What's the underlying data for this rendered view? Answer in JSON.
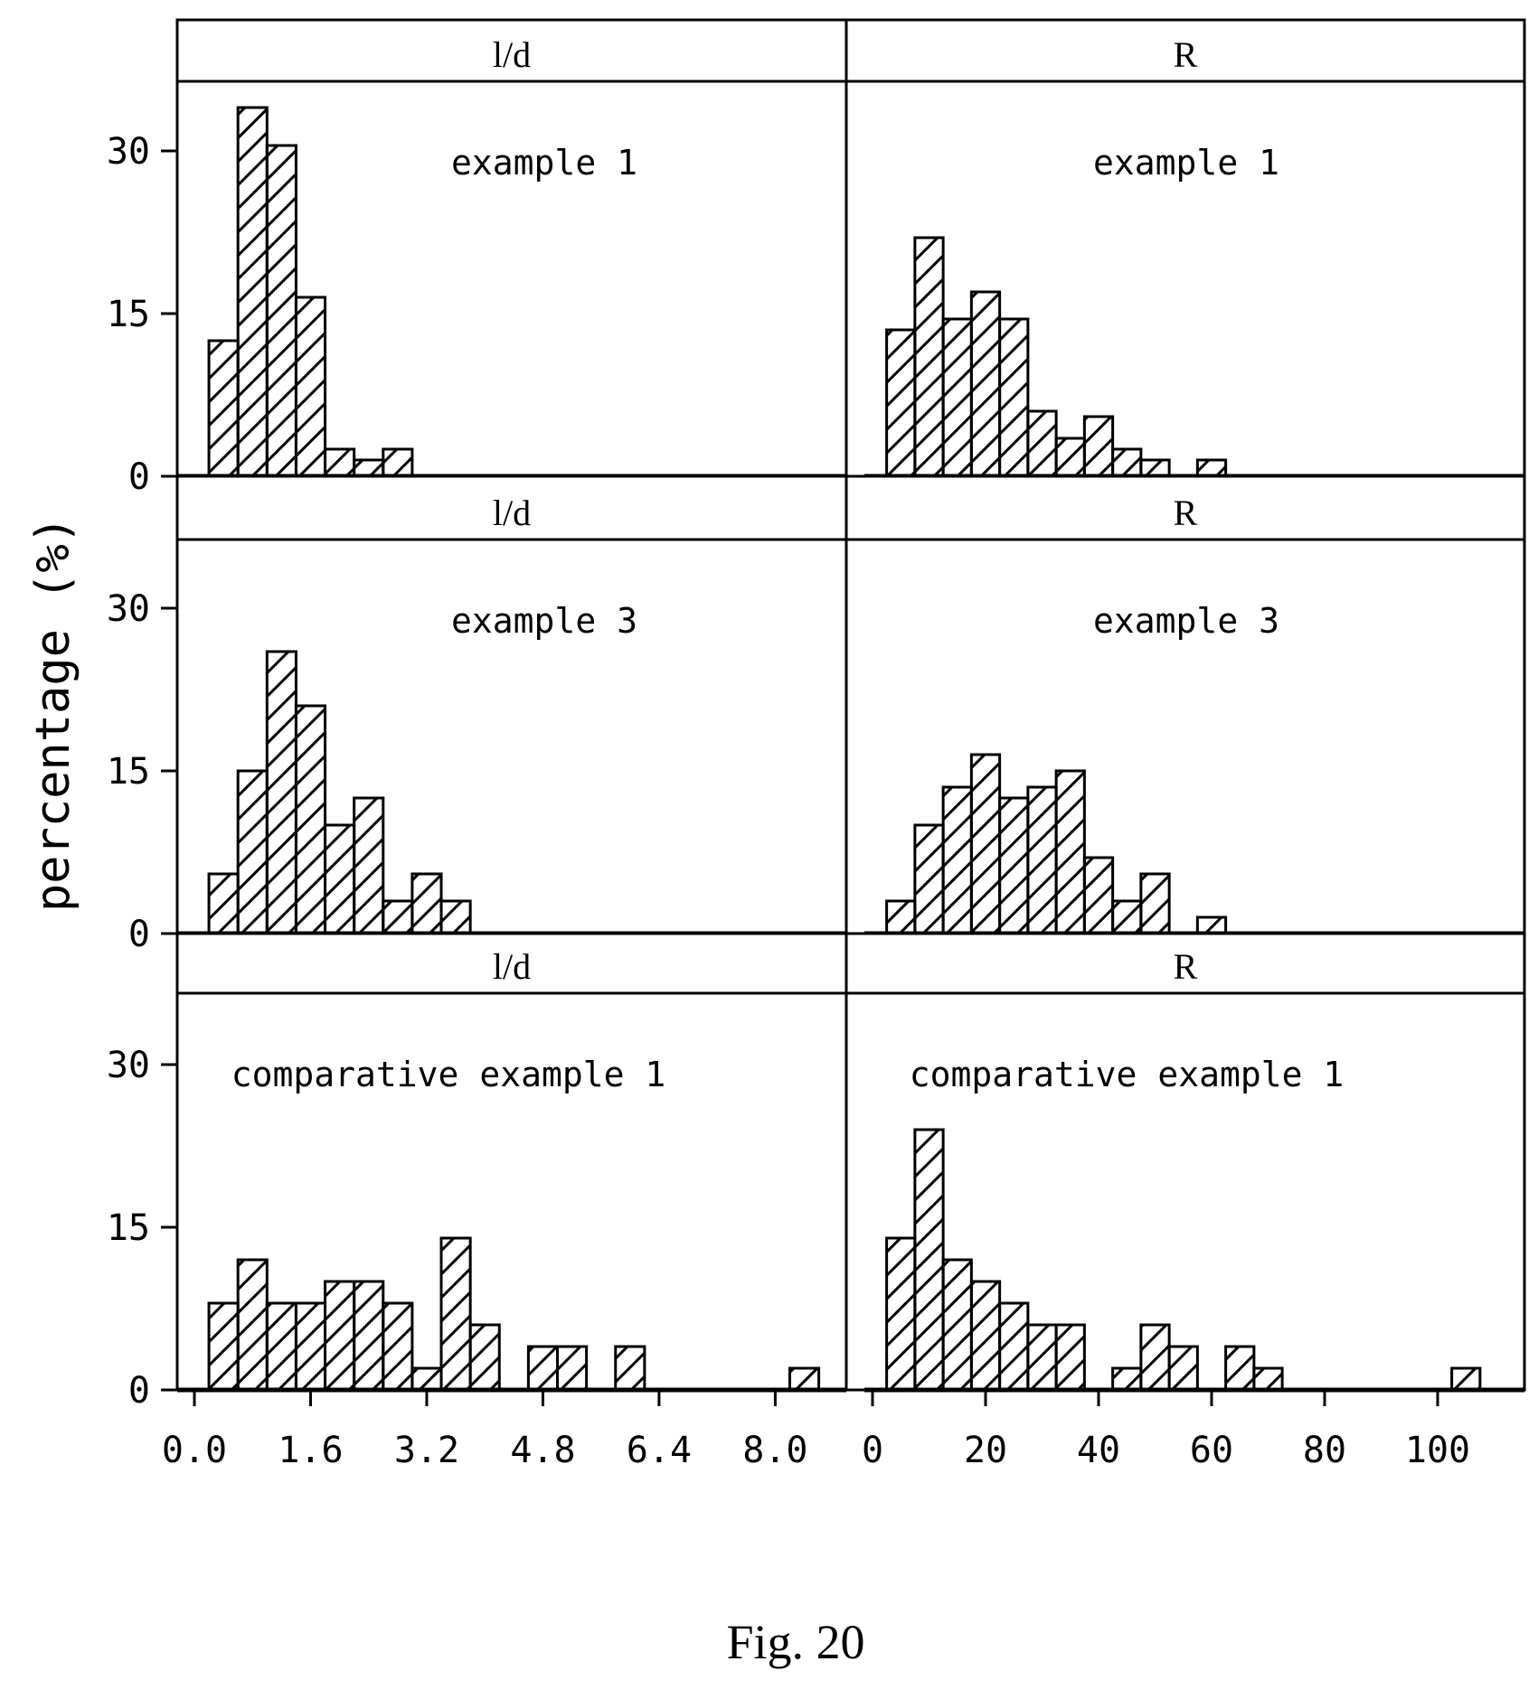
{
  "figure_caption": "Fig. 20",
  "y_axis_label": "percentage (%)",
  "y_ticks": [
    "0",
    "15",
    "30"
  ],
  "x_axes": {
    "ld": [
      "0.0",
      "1.6",
      "3.2",
      "4.8",
      "6.4",
      "8.0"
    ],
    "r": [
      "0",
      "20",
      "40",
      "60",
      "80",
      "100"
    ]
  },
  "chart_data": [
    {
      "type": "bar",
      "strip": "l/d",
      "annotation": "example 1",
      "x_range": [
        0,
        8.8
      ],
      "ylim": [
        0,
        35
      ],
      "bin_width": 0.4,
      "bins": [
        0.4,
        0.8,
        1.2,
        1.6,
        2.0,
        2.4,
        2.8
      ],
      "values": [
        12.5,
        34,
        30.5,
        16.5,
        2.5,
        1.5,
        2.5
      ]
    },
    {
      "type": "bar",
      "strip": "R",
      "annotation": "example 1",
      "x_range": [
        0,
        115
      ],
      "ylim": [
        0,
        35
      ],
      "bin_width": 5,
      "bins": [
        5,
        10,
        15,
        20,
        25,
        30,
        35,
        40,
        45,
        50,
        60
      ],
      "values": [
        13.5,
        22,
        14.5,
        17,
        14.5,
        6,
        3.5,
        5.5,
        2.5,
        1.5,
        1.5
      ]
    },
    {
      "type": "bar",
      "strip": "l/d",
      "annotation": "example 3",
      "x_range": [
        0,
        8.8
      ],
      "ylim": [
        0,
        35
      ],
      "bin_width": 0.4,
      "bins": [
        0.4,
        0.8,
        1.2,
        1.6,
        2.0,
        2.4,
        2.8,
        3.2,
        3.6
      ],
      "values": [
        5.5,
        15,
        26,
        21,
        10,
        12.5,
        3,
        5.5,
        3
      ]
    },
    {
      "type": "bar",
      "strip": "R",
      "annotation": "example 3",
      "x_range": [
        0,
        115
      ],
      "ylim": [
        0,
        35
      ],
      "bin_width": 5,
      "bins": [
        5,
        10,
        15,
        20,
        25,
        30,
        35,
        40,
        45,
        50,
        60
      ],
      "values": [
        3,
        10,
        13.5,
        16.5,
        12.5,
        13.5,
        15,
        7,
        3,
        5.5,
        1.5
      ]
    },
    {
      "type": "bar",
      "strip": "l/d",
      "annotation": "comparative example 1",
      "x_range": [
        0,
        8.8
      ],
      "ylim": [
        0,
        35
      ],
      "bin_width": 0.4,
      "bins": [
        0.4,
        0.8,
        1.2,
        1.6,
        2.0,
        2.4,
        2.8,
        3.2,
        3.6,
        4.0,
        4.8,
        5.2,
        6.0,
        8.4
      ],
      "values": [
        8,
        12,
        8,
        8,
        10,
        10,
        8,
        2,
        14,
        6,
        4,
        4,
        4,
        2
      ]
    },
    {
      "type": "bar",
      "strip": "R",
      "annotation": "comparative example 1",
      "x_range": [
        0,
        115
      ],
      "ylim": [
        0,
        35
      ],
      "bin_width": 5,
      "bins": [
        5,
        10,
        15,
        20,
        25,
        30,
        35,
        45,
        50,
        55,
        65,
        70,
        105
      ],
      "values": [
        14,
        24,
        12,
        10,
        8,
        6,
        6,
        2,
        6,
        4,
        4,
        2,
        2
      ]
    }
  ]
}
